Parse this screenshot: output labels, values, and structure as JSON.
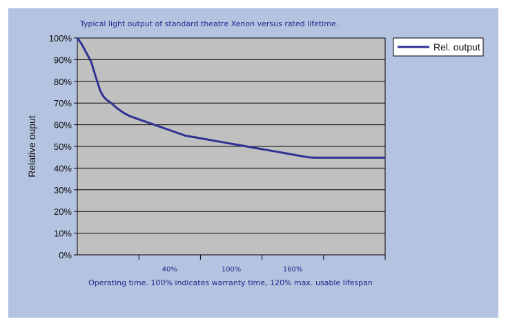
{
  "chart_data": {
    "type": "line",
    "title": "Typical light output of standard theatre Xenon versus rated lifetime.",
    "xlabel": "Operating time. 100% indicates warranty time, 120% max. usable lifespan",
    "ylabel": "Relative ouput",
    "xlim": [
      -50,
      150
    ],
    "ylim": [
      0,
      100
    ],
    "x_ticks": [
      -10,
      30,
      70,
      110,
      150
    ],
    "x_tick_labels": [
      {
        "value": 10,
        "label": "40%"
      },
      {
        "value": 50,
        "label": "100%"
      },
      {
        "value": 90,
        "label": "160%"
      }
    ],
    "y_ticks": [
      0,
      10,
      20,
      30,
      40,
      50,
      60,
      70,
      80,
      90,
      100
    ],
    "y_tick_labels": [
      "0%",
      "10%",
      "20%",
      "30%",
      "40%",
      "50%",
      "60%",
      "70%",
      "80%",
      "90%",
      "100%"
    ],
    "grid": true,
    "legend_position": "right",
    "series": [
      {
        "name": "Rel. output",
        "color": "#2e3192",
        "x": [
          -50,
          -47,
          -44,
          -41,
          -38,
          -35,
          -33,
          -31,
          -28,
          -24,
          -20,
          -16,
          -12,
          -8,
          -4,
          0,
          4,
          8,
          12,
          16,
          20,
          24,
          28,
          32,
          36,
          40,
          44,
          48,
          52,
          56,
          60,
          64,
          68,
          72,
          76,
          80,
          84,
          88,
          92,
          96,
          100,
          104,
          108,
          112,
          116,
          120,
          124,
          128,
          132,
          136,
          140,
          144,
          148,
          150
        ],
        "values": [
          100,
          97,
          93,
          89,
          82,
          75.5,
          73,
          71.5,
          70,
          67.5,
          65.5,
          64,
          63,
          62,
          61,
          60,
          59,
          58,
          57,
          56,
          55,
          54.5,
          54,
          53.5,
          53,
          52.5,
          52,
          51.5,
          51,
          50.5,
          50,
          49.5,
          49,
          48.5,
          48,
          47.5,
          47,
          46.5,
          46,
          45.5,
          45,
          44.8,
          44.8,
          44.8,
          44.8,
          44.8,
          44.8,
          44.8,
          44.8,
          44.8,
          44.8,
          44.8,
          44.8,
          44.8
        ]
      }
    ]
  },
  "colors": {
    "background": "#b3c3e0",
    "plot_area": "#c0c0c0",
    "text_blue": "#1f2a8a"
  }
}
